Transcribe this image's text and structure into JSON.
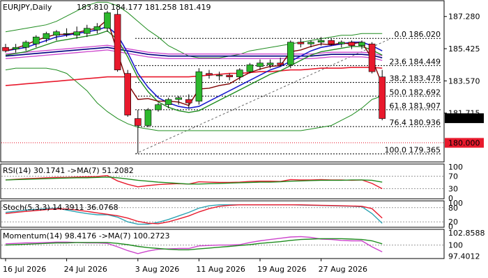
{
  "header": {
    "symbol": "EURJPY,Daily",
    "ohlc": "183.810 184.177 181.258 181.419"
  },
  "price_axis": {
    "ticks": [
      "187.280",
      "185.425",
      "183.570",
      "181.715"
    ],
    "current_price": "181.419",
    "marked_price": "180.000",
    "current_color": "#000000",
    "marked_color": "#e8192c"
  },
  "fib_levels": [
    {
      "label": "0.0 186.020"
    },
    {
      "label": "23.6 184.449"
    },
    {
      "label": "38.2 183.478"
    },
    {
      "label": "50.0 182.692"
    },
    {
      "label": "61.8 181.907"
    },
    {
      "label": "76.4 180.936"
    },
    {
      "label": "100.0 179.365"
    }
  ],
  "time_axis": [
    "16 Jul 2026",
    "24 Jul 2026",
    "3 Aug 2026",
    "11 Aug 2026",
    "19 Aug 2026",
    "27 Aug 2026"
  ],
  "rsi_panel": {
    "title": "RSI(14) 30.1741  ->MA(7) 51.2082",
    "ticks": [
      "100",
      "70",
      "30",
      "0"
    ]
  },
  "stoch_panel": {
    "title": "Stoch(5,3,3) 14.3911 36.0768",
    "ticks": [
      "100",
      "80",
      "20",
      "0"
    ]
  },
  "momentum_panel": {
    "title": "Momentum(14) 98.4176  ->MA(7) 100.2723",
    "ticks": [
      "102.8588",
      "100",
      "97.4012"
    ]
  },
  "colors": {
    "bull": "#2db82d",
    "bear": "#e8192c",
    "ma_blue": "#1a1acc",
    "ma_red": "#e8192c",
    "ma_navy": "#000080",
    "ma_green": "#1e8c1e",
    "ma_magenta": "#cc44cc",
    "maroon": "#800000"
  },
  "chart_data": [
    {
      "type": "candlestick",
      "title": "EURJPY,Daily",
      "ylim": [
        178.9,
        188.15
      ],
      "candles": [
        {
          "o": 185.5,
          "h": 185.7,
          "l": 185.2,
          "c": 185.3
        },
        {
          "o": 185.4,
          "h": 185.7,
          "l": 185.2,
          "c": 185.5
        },
        {
          "o": 185.5,
          "h": 185.9,
          "l": 185.3,
          "c": 185.8
        },
        {
          "o": 185.7,
          "h": 186.2,
          "l": 185.5,
          "c": 186.1
        },
        {
          "o": 186.0,
          "h": 186.4,
          "l": 185.8,
          "c": 186.3
        },
        {
          "o": 186.2,
          "h": 186.5,
          "l": 185.9,
          "c": 186.4
        },
        {
          "o": 186.3,
          "h": 186.6,
          "l": 186.1,
          "c": 186.3
        },
        {
          "o": 186.2,
          "h": 186.7,
          "l": 186.0,
          "c": 186.4
        },
        {
          "o": 186.3,
          "h": 186.8,
          "l": 186.1,
          "c": 186.6
        },
        {
          "o": 186.5,
          "h": 186.9,
          "l": 186.3,
          "c": 186.7
        },
        {
          "o": 186.6,
          "h": 187.6,
          "l": 186.4,
          "c": 187.5
        },
        {
          "o": 187.4,
          "h": 187.7,
          "l": 184.1,
          "c": 184.2
        },
        {
          "o": 184.0,
          "h": 184.2,
          "l": 181.5,
          "c": 181.6
        },
        {
          "o": 181.4,
          "h": 181.9,
          "l": 179.4,
          "c": 181.0
        },
        {
          "o": 181.0,
          "h": 182.0,
          "l": 180.9,
          "c": 181.9
        },
        {
          "o": 181.9,
          "h": 182.3,
          "l": 181.8,
          "c": 182.2
        },
        {
          "o": 182.2,
          "h": 182.6,
          "l": 182.0,
          "c": 182.5
        },
        {
          "o": 182.5,
          "h": 182.7,
          "l": 182.2,
          "c": 182.6
        },
        {
          "o": 182.5,
          "h": 182.8,
          "l": 182.0,
          "c": 182.3
        },
        {
          "o": 182.4,
          "h": 184.3,
          "l": 182.2,
          "c": 184.1
        },
        {
          "o": 184.0,
          "h": 184.2,
          "l": 183.7,
          "c": 183.9
        },
        {
          "o": 183.9,
          "h": 184.1,
          "l": 183.6,
          "c": 183.9
        },
        {
          "o": 183.9,
          "h": 184.0,
          "l": 183.6,
          "c": 183.8
        },
        {
          "o": 183.8,
          "h": 184.3,
          "l": 183.6,
          "c": 184.2
        },
        {
          "o": 184.1,
          "h": 184.6,
          "l": 184.0,
          "c": 184.5
        },
        {
          "o": 184.4,
          "h": 184.8,
          "l": 184.2,
          "c": 184.6
        },
        {
          "o": 184.5,
          "h": 184.8,
          "l": 184.3,
          "c": 184.6
        },
        {
          "o": 184.6,
          "h": 184.9,
          "l": 184.4,
          "c": 184.5
        },
        {
          "o": 184.5,
          "h": 185.9,
          "l": 184.3,
          "c": 185.8
        },
        {
          "o": 185.8,
          "h": 186.0,
          "l": 185.5,
          "c": 185.7
        },
        {
          "o": 185.7,
          "h": 185.9,
          "l": 185.5,
          "c": 185.8
        },
        {
          "o": 185.8,
          "h": 186.1,
          "l": 185.6,
          "c": 185.9
        },
        {
          "o": 185.9,
          "h": 186.0,
          "l": 185.6,
          "c": 185.7
        },
        {
          "o": 185.7,
          "h": 185.9,
          "l": 185.5,
          "c": 185.8
        },
        {
          "o": 185.8,
          "h": 185.9,
          "l": 185.4,
          "c": 185.6
        },
        {
          "o": 185.6,
          "h": 185.9,
          "l": 185.4,
          "c": 185.8
        },
        {
          "o": 185.7,
          "h": 185.8,
          "l": 184.0,
          "c": 184.1
        },
        {
          "o": 183.8,
          "h": 184.2,
          "l": 181.3,
          "c": 181.4
        }
      ],
      "ma_fast": [
        185.3,
        185.4,
        185.5,
        185.7,
        185.9,
        186.1,
        186.2,
        186.3,
        186.4,
        186.5,
        186.7,
        186.2,
        185.2,
        184.0,
        183.2,
        182.6,
        182.3,
        182.1,
        182.0,
        182.1,
        182.4,
        182.7,
        183.0,
        183.3,
        183.6,
        183.9,
        184.2,
        184.4,
        184.7,
        185.0,
        185.3,
        185.5,
        185.6,
        185.7,
        185.8,
        185.8,
        185.6,
        185.3
      ],
      "ma_slow_red": [
        183.3,
        183.35,
        183.4,
        183.45,
        183.5,
        183.55,
        183.6,
        183.65,
        183.7,
        183.75,
        183.8,
        183.8,
        183.8,
        183.8,
        183.8,
        183.8,
        183.8,
        183.8,
        183.8,
        183.85,
        183.9,
        183.95,
        184.0,
        184.0,
        184.05,
        184.1,
        184.1,
        184.15,
        184.2,
        184.2,
        184.25,
        184.3,
        184.3,
        184.3,
        184.35,
        184.35,
        184.35,
        184.3
      ],
      "ma_navy": [
        185.0,
        185.05,
        185.1,
        185.15,
        185.2,
        185.25,
        185.3,
        185.35,
        185.4,
        185.45,
        185.5,
        185.4,
        185.3,
        185.2,
        185.1,
        185.05,
        185.0,
        185.0,
        185.0,
        185.0,
        185.0,
        185.0,
        185.0,
        185.0,
        185.0,
        185.0,
        185.0,
        185.0,
        185.0,
        185.0,
        185.0,
        185.05,
        185.1,
        185.1,
        185.1,
        185.1,
        185.05,
        184.9
      ],
      "bb_upper": [
        186.4,
        186.5,
        186.6,
        186.7,
        186.8,
        187.0,
        187.3,
        187.6,
        187.9,
        188.1,
        188.1,
        187.9,
        187.5,
        187.0,
        186.5,
        186.1,
        185.6,
        185.3,
        185.0,
        184.9,
        184.9,
        184.9,
        185.0,
        185.1,
        185.3,
        185.4,
        185.5,
        185.6,
        185.7,
        185.8,
        185.9,
        186.0,
        186.1,
        186.2,
        186.2,
        186.3,
        186.3,
        186.3
      ],
      "bb_lower": [
        184.2,
        184.3,
        184.3,
        184.3,
        184.3,
        184.2,
        184.0,
        183.5,
        183.0,
        182.3,
        181.8,
        181.4,
        181.1,
        180.9,
        180.8,
        180.7,
        180.7,
        180.7,
        180.7,
        180.7,
        180.7,
        180.7,
        180.7,
        180.7,
        180.7,
        180.7,
        180.7,
        180.7,
        180.7,
        180.7,
        180.8,
        180.9,
        181.0,
        181.3,
        181.6,
        182.0,
        182.5,
        182.7
      ]
    },
    {
      "type": "line",
      "title": "RSI(14) 30.1741  ->MA(7) 51.2082",
      "ylim": [
        0,
        100
      ],
      "series": [
        {
          "name": "RSI(14)",
          "values": [
            58,
            60,
            62,
            63,
            65,
            66,
            66,
            67,
            68,
            69,
            72,
            55,
            44,
            36,
            40,
            43,
            45,
            46,
            45,
            52,
            51,
            50,
            50,
            51,
            53,
            54,
            54,
            53,
            59,
            58,
            58,
            59,
            58,
            58,
            57,
            58,
            47,
            30
          ]
        },
        {
          "name": "MA(7)",
          "values": [
            58,
            59,
            60,
            61,
            62,
            63,
            64,
            65,
            65,
            66,
            67,
            65,
            61,
            57,
            54,
            51,
            49,
            47,
            45,
            45,
            46,
            47,
            48,
            49,
            50,
            51,
            51,
            52,
            54,
            55,
            56,
            57,
            57,
            57,
            58,
            58,
            57,
            51
          ]
        }
      ]
    },
    {
      "type": "line",
      "title": "Stoch(5,3,3) 14.3911 36.0768",
      "ylim": [
        0,
        100
      ],
      "series": [
        {
          "name": "%K",
          "values": [
            60,
            65,
            70,
            72,
            75,
            78,
            70,
            62,
            55,
            50,
            50,
            40,
            20,
            10,
            10,
            18,
            30,
            45,
            60,
            78,
            88,
            92,
            92,
            92,
            92,
            92,
            92,
            92,
            92,
            91,
            90,
            89,
            88,
            87,
            86,
            84,
            55,
            14
          ]
        },
        {
          "name": "%D",
          "values": [
            55,
            60,
            64,
            68,
            72,
            75,
            74,
            70,
            64,
            58,
            52,
            46,
            36,
            22,
            14,
            12,
            20,
            32,
            45,
            62,
            76,
            86,
            90,
            92,
            92,
            92,
            92,
            92,
            92,
            92,
            91,
            90,
            89,
            88,
            87,
            86,
            76,
            36
          ]
        }
      ]
    },
    {
      "type": "line",
      "title": "Momentum(14) 98.4176  ->MA(7) 100.2723",
      "ylim": [
        97.0,
        103.2
      ],
      "series": [
        {
          "name": "Momentum(14)",
          "values": [
            100.3,
            100.4,
            100.5,
            100.5,
            100.6,
            100.7,
            100.7,
            100.6,
            100.5,
            100.5,
            100.4,
            99.6,
            98.7,
            98.0,
            98.6,
            99.0,
            99.1,
            99.2,
            99.2,
            99.8,
            99.9,
            100.0,
            100.0,
            100.1,
            100.6,
            101.0,
            101.3,
            101.6,
            101.9,
            102.0,
            101.8,
            101.4,
            101.3,
            101.1,
            101.0,
            101.0,
            99.6,
            98.4
          ]
        },
        {
          "name": "MA(7)",
          "values": [
            100.0,
            100.1,
            100.2,
            100.3,
            100.4,
            100.5,
            100.5,
            100.6,
            100.6,
            100.6,
            100.6,
            100.4,
            100.1,
            99.7,
            99.4,
            99.2,
            99.0,
            98.9,
            98.9,
            99.1,
            99.3,
            99.5,
            99.7,
            99.9,
            100.1,
            100.4,
            100.6,
            100.8,
            101.1,
            101.3,
            101.4,
            101.5,
            101.5,
            101.5,
            101.4,
            101.3,
            101.0,
            100.3
          ]
        }
      ]
    }
  ]
}
